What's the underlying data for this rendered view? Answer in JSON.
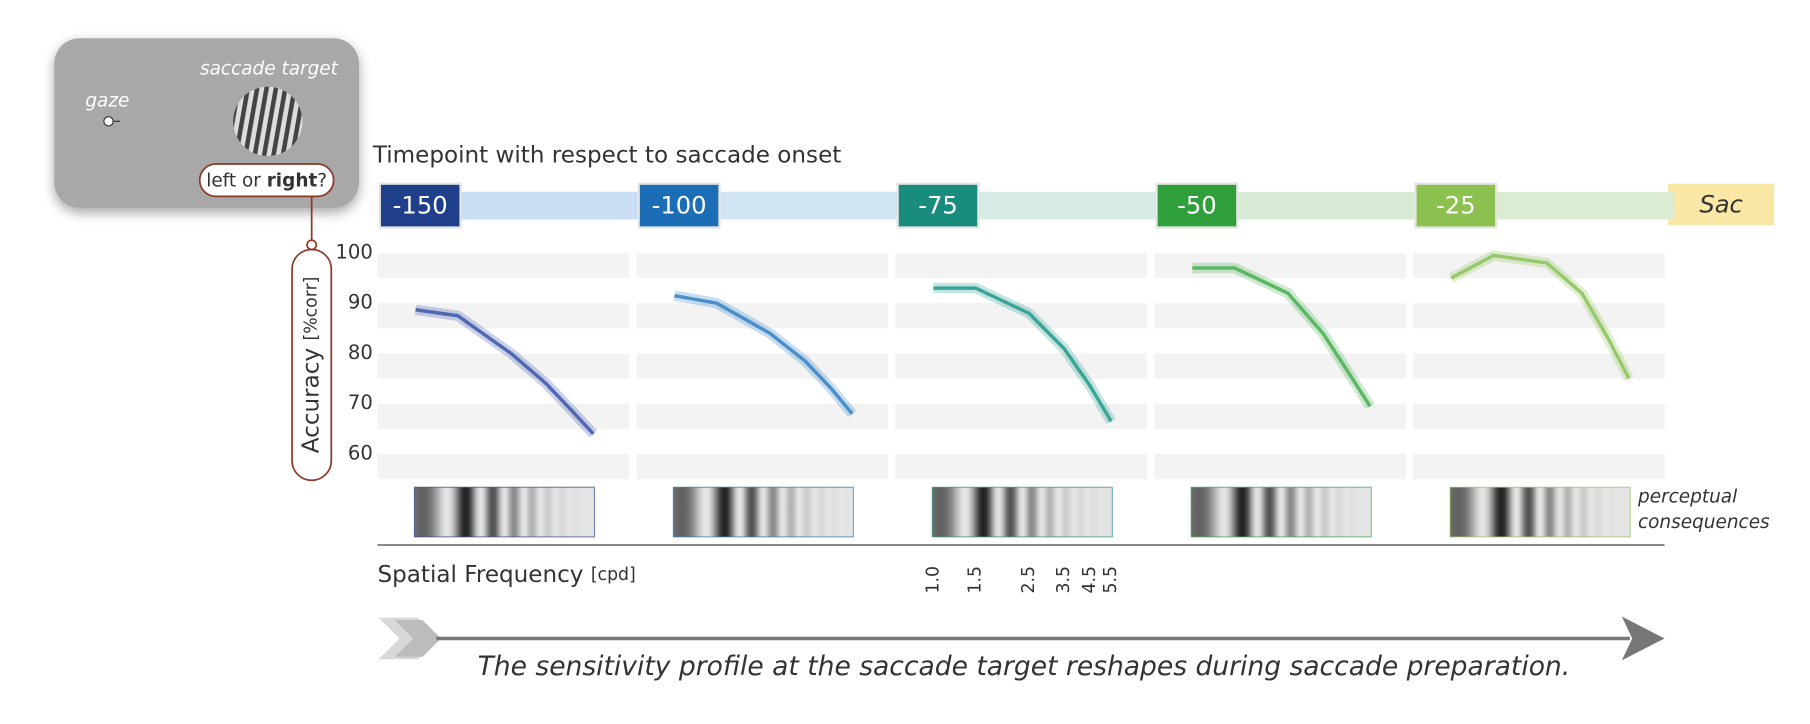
{
  "inset": {
    "gaze": "gaze",
    "target": "saccade target",
    "question": [
      "left or ",
      "right",
      "?"
    ]
  },
  "timeline_title": "Timepoint with respect to saccade onset",
  "saccade_label": "Sac",
  "y_label": [
    "Accuracy",
    "[%corr]"
  ],
  "x_label": [
    "Spatial Frequency",
    "[cpd]"
  ],
  "grating_caption": [
    "perceptual",
    "consequences"
  ],
  "caption": "The sensitivity profile at the saccade target reshapes during saccade preparation.",
  "chart_data": [
    {
      "type": "line",
      "title": "-150",
      "header_color": "#1f3f8a",
      "bar_color": "#c9def3",
      "color": "#4f68b3",
      "xscale": "log",
      "xlim": [
        1,
        5.5
      ],
      "ylim": [
        55,
        100
      ],
      "yticks": [
        60,
        70,
        80,
        90,
        100
      ],
      "grid": true,
      "x": [
        1,
        1.5,
        2.5,
        3.5,
        4.5,
        5.5
      ],
      "series": [
        {
          "color": "#4f68b3",
          "values": [
            88.7,
            87.5,
            80,
            74,
            68.5,
            64
          ]
        }
      ]
    },
    {
      "type": "line",
      "title": "-100",
      "header_color": "#1b6db5",
      "bar_color": "#d1e5f2",
      "color": "#4a8fcb",
      "xscale": "log",
      "xlim": [
        1,
        5.5
      ],
      "ylim": [
        55,
        100
      ],
      "yticks": [
        60,
        70,
        80,
        90,
        100
      ],
      "grid": true,
      "x": [
        1,
        1.5,
        2.5,
        3.5,
        4.5,
        5.5
      ],
      "series": [
        {
          "color": "#4a8fcb",
          "values": [
            91.5,
            90,
            84,
            78.5,
            73,
            68
          ]
        }
      ]
    },
    {
      "type": "line",
      "title": "-75",
      "header_color": "#1a8c7e",
      "bar_color": "#d6ebe6",
      "color": "#3aa597",
      "xscale": "log",
      "xlim": [
        1,
        5.5
      ],
      "ylim": [
        55,
        100
      ],
      "yticks": [
        60,
        70,
        80,
        90,
        100
      ],
      "grid": true,
      "x": [
        1,
        1.5,
        2.5,
        3.5,
        4.5,
        5.5
      ],
      "xticks": [
        {
          "value": 1,
          "label": "1.0"
        },
        1.5,
        2.5,
        3.5,
        4.5,
        5.5
      ],
      "series": [
        {
          "color": "#3aa597",
          "values": [
            93,
            93,
            88,
            81,
            73.5,
            66.5
          ]
        }
      ]
    },
    {
      "type": "line",
      "title": "-50",
      "header_color": "#2f9f3b",
      "bar_color": "#d6ead4",
      "color": "#5bb764",
      "xscale": "log",
      "xlim": [
        1,
        5.5
      ],
      "ylim": [
        55,
        100
      ],
      "yticks": [
        60,
        70,
        80,
        90,
        100
      ],
      "grid": true,
      "x": [
        1,
        1.5,
        2.5,
        3.5,
        4.5,
        5.5
      ],
      "series": [
        {
          "color": "#5bb764",
          "values": [
            97,
            97,
            92,
            84,
            76,
            69.5
          ]
        }
      ]
    },
    {
      "type": "line",
      "title": "-25",
      "header_color": "#8cc04f",
      "bar_color": "#dcecd2",
      "color": "#97c96a",
      "xscale": "log",
      "xlim": [
        1,
        5.5
      ],
      "ylim": [
        55,
        100
      ],
      "yticks": [
        60,
        70,
        80,
        90,
        100
      ],
      "grid": true,
      "x": [
        1,
        1.5,
        2.5,
        3.5,
        4.5,
        5.5
      ],
      "series": [
        {
          "color": "#97c96a",
          "values": [
            95,
            99.5,
            98,
            92,
            83,
            75
          ]
        }
      ]
    }
  ]
}
